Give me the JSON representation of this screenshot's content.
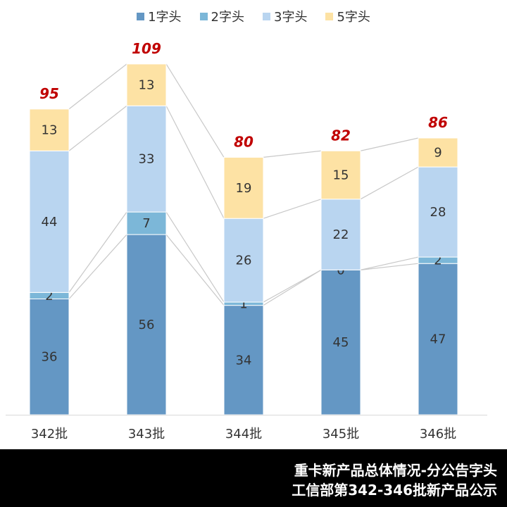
{
  "chart_data": {
    "type": "bar",
    "stacked": true,
    "categories": [
      "342批",
      "343批",
      "344批",
      "345批",
      "346批"
    ],
    "series": [
      {
        "name": "1字头",
        "values": [
          36,
          56,
          34,
          45,
          47
        ],
        "color": "#6497c4"
      },
      {
        "name": "2字头",
        "values": [
          2,
          7,
          1,
          0,
          2
        ],
        "color": "#7cb7d8"
      },
      {
        "name": "3字头",
        "values": [
          44,
          33,
          26,
          22,
          28
        ],
        "color": "#b9d5f0"
      },
      {
        "name": "5字头",
        "values": [
          13,
          13,
          19,
          15,
          9
        ],
        "color": "#fde2a4"
      }
    ],
    "totals": [
      95,
      109,
      80,
      82,
      86
    ],
    "legend_position": "top",
    "grid": false,
    "ylim": [
      0,
      110
    ]
  },
  "footer": {
    "line1": "重卡新产品总体情况-分公告字头",
    "line2": "工信部第342-346批新产品公示"
  },
  "colors": {
    "total_label": "#c00000",
    "connector": "#c8c8c8",
    "footer_bg": "#000000"
  }
}
